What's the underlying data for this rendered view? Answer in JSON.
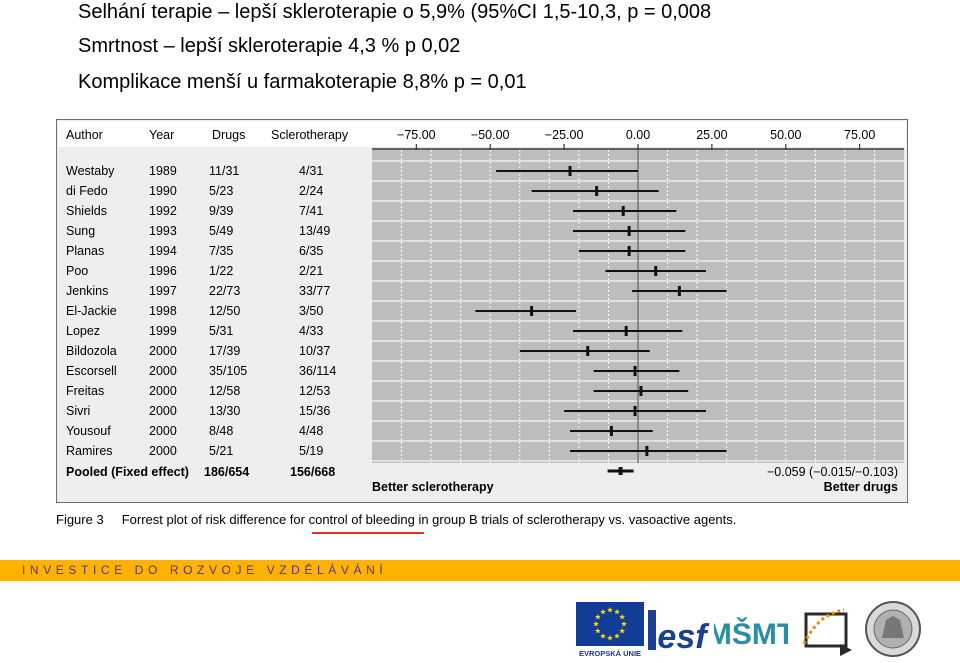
{
  "headlines": [
    "Selhání terapie – lepší skleroterapie o 5,9% (95%CI 1,5-10,3, p = 0,008",
    "Smrtnost – lepší skleroterapie 4,3 % p 0,02",
    "Komplikace menší u farmakoterapie 8,8% p = 0,01"
  ],
  "table": {
    "headers": [
      "Author",
      "Year",
      "Drugs",
      "Sclerotherapy"
    ],
    "pooled_label": "Pooled (Fixed effect)",
    "pooled_drugs": "186/654",
    "pooled_sclero": "156/668",
    "pooled_estimate_text": "−0.059 (−0.015/−0.103)",
    "better_left": "Better sclerotherapy",
    "better_right": "Better drugs"
  },
  "chart_data": {
    "type": "forest",
    "x_ticks": [
      "−75.00",
      "−50.00",
      "−25.00",
      "0.00",
      "25.00",
      "50.00",
      "75.00"
    ],
    "xlim": [
      -90,
      90
    ],
    "reference_line": 0,
    "grid": true,
    "studies": [
      {
        "author": "Westaby",
        "year": "1989",
        "drugs": "11/31",
        "sclero": "4/31",
        "est": -23,
        "lo": -48,
        "hi": 0
      },
      {
        "author": "di Fedo",
        "year": "1990",
        "drugs": "5/23",
        "sclero": "2/24",
        "est": -14,
        "lo": -36,
        "hi": 7
      },
      {
        "author": "Shields",
        "year": "1992",
        "drugs": "9/39",
        "sclero": "7/41",
        "est": -5,
        "lo": -22,
        "hi": 13
      },
      {
        "author": "Sung",
        "year": "1993",
        "drugs": "5/49",
        "sclero": "13/49",
        "est": -3,
        "lo": -22,
        "hi": 16
      },
      {
        "author": "Planas",
        "year": "1994",
        "drugs": "7/35",
        "sclero": "6/35",
        "est": -3,
        "lo": -20,
        "hi": 16
      },
      {
        "author": "Poo",
        "year": "1996",
        "drugs": "1/22",
        "sclero": "2/21",
        "est": 6,
        "lo": -11,
        "hi": 23
      },
      {
        "author": "Jenkins",
        "year": "1997",
        "drugs": "22/73",
        "sclero": "33/77",
        "est": 14,
        "lo": -2,
        "hi": 30
      },
      {
        "author": "El-Jackie",
        "year": "1998",
        "drugs": "12/50",
        "sclero": "3/50",
        "est": -36,
        "lo": -55,
        "hi": -21
      },
      {
        "author": "Lopez",
        "year": "1999",
        "drugs": "5/31",
        "sclero": "4/33",
        "est": -4,
        "lo": -22,
        "hi": 15
      },
      {
        "author": "Bildozola",
        "year": "2000",
        "drugs": "17/39",
        "sclero": "10/37",
        "est": -17,
        "lo": -40,
        "hi": 4
      },
      {
        "author": "Escorsell",
        "year": "2000",
        "drugs": "35/105",
        "sclero": "36/114",
        "est": -1,
        "lo": -15,
        "hi": 14
      },
      {
        "author": "Freitas",
        "year": "2000",
        "drugs": "12/58",
        "sclero": "12/53",
        "est": 1,
        "lo": -15,
        "hi": 17
      },
      {
        "author": "Sivri",
        "year": "2000",
        "drugs": "13/30",
        "sclero": "15/36",
        "est": -1,
        "lo": -25,
        "hi": 23
      },
      {
        "author": "Yousouf",
        "year": "2000",
        "drugs": "8/48",
        "sclero": "4/48",
        "est": -9,
        "lo": -23,
        "hi": 5
      },
      {
        "author": "Ramires",
        "year": "2000",
        "drugs": "5/21",
        "sclero": "5/19",
        "est": 3,
        "lo": -23,
        "hi": 30
      }
    ],
    "pooled": {
      "est": -5.9,
      "lo": -10.3,
      "hi": -1.5
    }
  },
  "caption": {
    "figure_label": "Figure 3",
    "text": "Forrest plot of risk difference for control of bleeding in group B trials of sclerotherapy vs. vasoactive agents."
  },
  "banner": {
    "text": "INVESTICE DO ROZVOJE VZDĚLÁVÁNÍ"
  },
  "logos": {
    "eu_label": "EVROPSKÁ UNIE",
    "esf_text": "esf",
    "msmt_text": "MŠMT",
    "colors": {
      "eu_blue": "#123d96",
      "eu_star": "#ffdd00",
      "esf_blue": "#1c3f94",
      "msmt_teal": "#2a8fa6",
      "op_orange": "#f08a00"
    }
  }
}
